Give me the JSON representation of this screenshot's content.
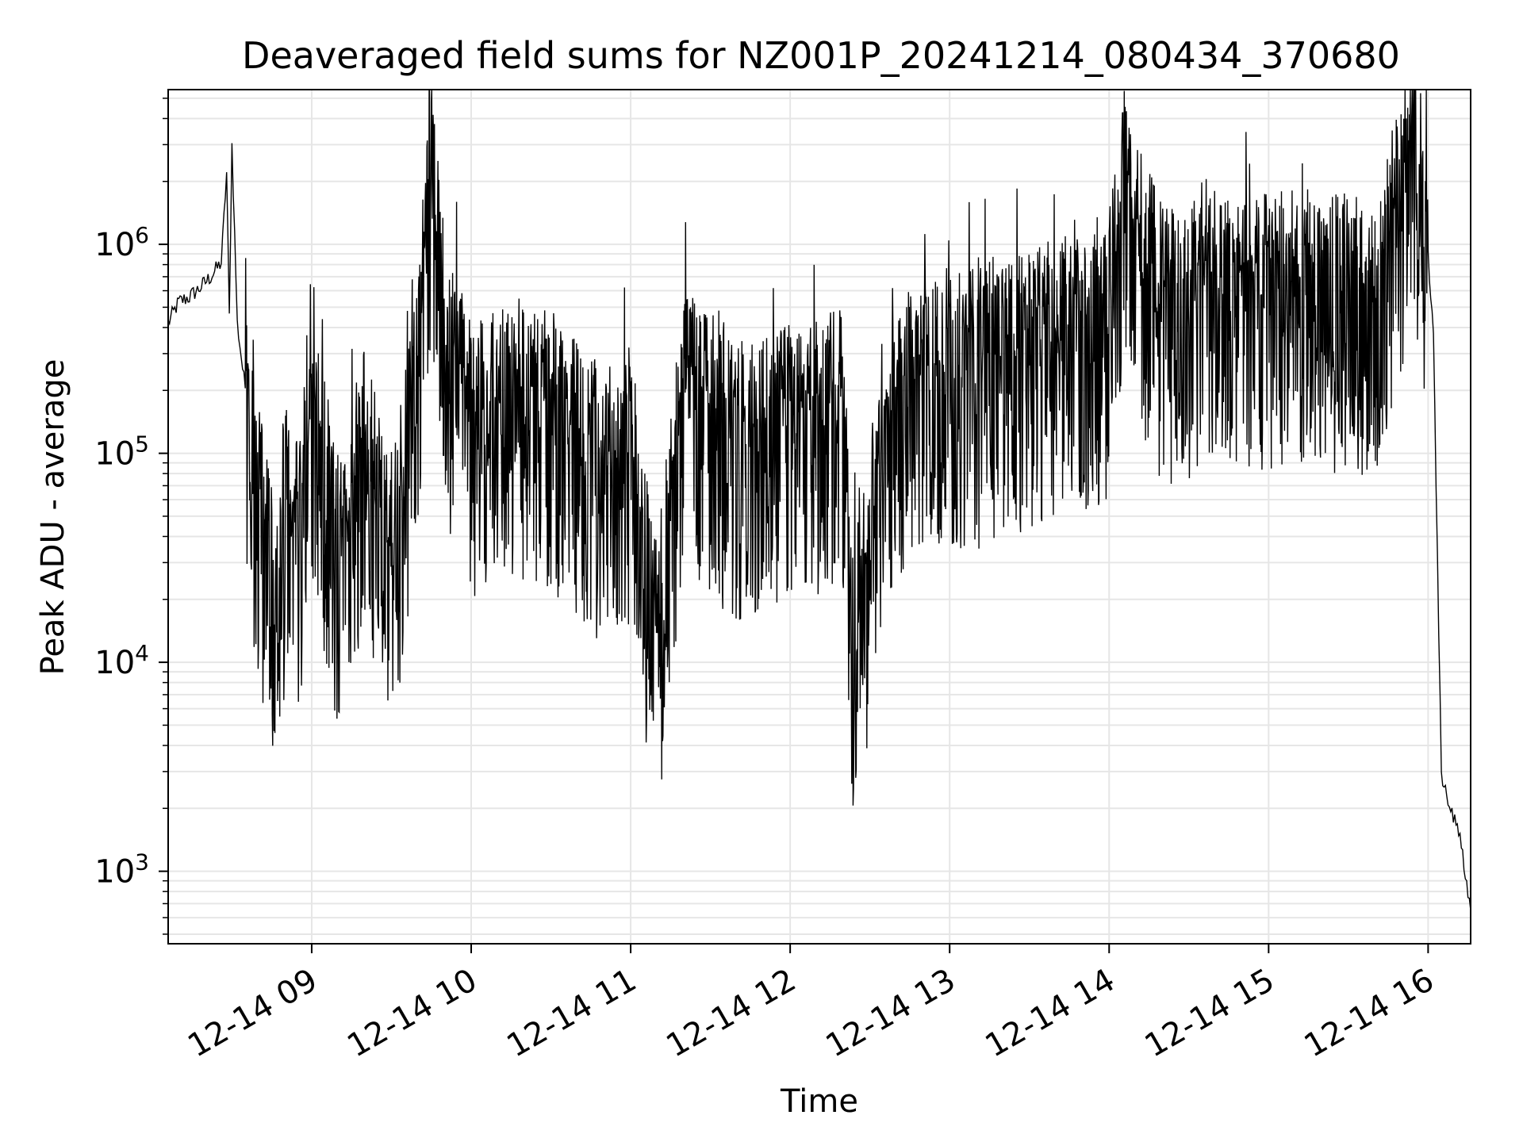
{
  "chart_data": {
    "type": "line",
    "title": "Deaveraged field sums for NZ001P_20241214_080434_370680",
    "xlabel": "Time",
    "ylabel": "Peak ADU - average",
    "x_range": [
      "2024-12-14 08:06",
      "2024-12-14 16:16"
    ],
    "ylim": [
      450,
      5500000
    ],
    "yscale": "log",
    "grid": true,
    "grid_minor": true,
    "legend": "none",
    "line_color": "#000000",
    "grid_color": "#e6e6e6",
    "x_ticks": [
      {
        "time": "2024-12-14 09:00",
        "label": "12-14 09"
      },
      {
        "time": "2024-12-14 10:00",
        "label": "12-14 10"
      },
      {
        "time": "2024-12-14 11:00",
        "label": "12-14 11"
      },
      {
        "time": "2024-12-14 12:00",
        "label": "12-14 12"
      },
      {
        "time": "2024-12-14 13:00",
        "label": "12-14 13"
      },
      {
        "time": "2024-12-14 14:00",
        "label": "12-14 14"
      },
      {
        "time": "2024-12-14 15:00",
        "label": "12-14 15"
      },
      {
        "time": "2024-12-14 16:00",
        "label": "12-14 16"
      }
    ],
    "y_ticks": [
      {
        "value": 1000,
        "base": "10",
        "exp": "3"
      },
      {
        "value": 10000,
        "base": "10",
        "exp": "4"
      },
      {
        "value": 100000,
        "base": "10",
        "exp": "5"
      },
      {
        "value": 1000000,
        "base": "10",
        "exp": "6"
      }
    ],
    "series": [
      {
        "name": "",
        "points": [
          [
            "2024-12-14 08:06",
            420000
          ],
          [
            "2024-12-14 08:10",
            530000
          ],
          [
            "2024-12-14 08:14",
            560000
          ],
          [
            "2024-12-14 08:18",
            620000
          ],
          [
            "2024-12-14 08:22",
            700000
          ],
          [
            "2024-12-14 08:26",
            820000
          ],
          [
            "2024-12-14 08:28",
            2200000
          ],
          [
            "2024-12-14 08:29",
            450000
          ],
          [
            "2024-12-14 08:30",
            3000000
          ],
          [
            "2024-12-14 08:32",
            420000
          ],
          [
            "2024-12-14 08:35",
            200000
          ],
          [
            "2024-12-14 08:38",
            100000
          ],
          [
            "2024-12-14 08:41",
            55000
          ],
          [
            "2024-12-14 08:44",
            30000
          ],
          [
            "2024-12-14 08:47",
            20000
          ],
          [
            "2024-12-14 08:50",
            60000
          ],
          [
            "2024-12-14 08:55",
            40000
          ],
          [
            "2024-12-14 09:00",
            180000
          ],
          [
            "2024-12-14 09:10",
            35000
          ],
          [
            "2024-12-14 09:20",
            120000
          ],
          [
            "2024-12-14 09:30",
            30000
          ],
          [
            "2024-12-14 09:40",
            250000
          ],
          [
            "2024-12-14 09:45",
            3000000
          ],
          [
            "2024-12-14 09:50",
            400000
          ],
          [
            "2024-12-14 10:00",
            150000
          ],
          [
            "2024-12-14 10:15",
            200000
          ],
          [
            "2024-12-14 10:30",
            180000
          ],
          [
            "2024-12-14 10:45",
            100000
          ],
          [
            "2024-12-14 11:00",
            120000
          ],
          [
            "2024-12-14 11:10",
            13000
          ],
          [
            "2024-12-14 11:20",
            220000
          ],
          [
            "2024-12-14 11:40",
            120000
          ],
          [
            "2024-12-14 12:00",
            150000
          ],
          [
            "2024-12-14 12:20",
            180000
          ],
          [
            "2024-12-14 12:23",
            11500
          ],
          [
            "2024-12-14 12:40",
            200000
          ],
          [
            "2024-12-14 13:00",
            250000
          ],
          [
            "2024-12-14 13:20",
            300000
          ],
          [
            "2024-12-14 13:40",
            380000
          ],
          [
            "2024-12-14 14:00",
            450000
          ],
          [
            "2024-12-14 14:05",
            1800000
          ],
          [
            "2024-12-14 14:20",
            550000
          ],
          [
            "2024-12-14 14:40",
            600000
          ],
          [
            "2024-12-14 15:00",
            650000
          ],
          [
            "2024-12-14 15:20",
            650000
          ],
          [
            "2024-12-14 15:40",
            600000
          ],
          [
            "2024-12-14 15:55",
            3400000
          ],
          [
            "2024-12-14 16:00",
            900000
          ],
          [
            "2024-12-14 16:02",
            350000
          ],
          [
            "2024-12-14 16:05",
            3000
          ],
          [
            "2024-12-14 16:08",
            2000
          ],
          [
            "2024-12-14 16:12",
            1500
          ],
          [
            "2024-12-14 16:16",
            650
          ]
        ]
      }
    ]
  }
}
